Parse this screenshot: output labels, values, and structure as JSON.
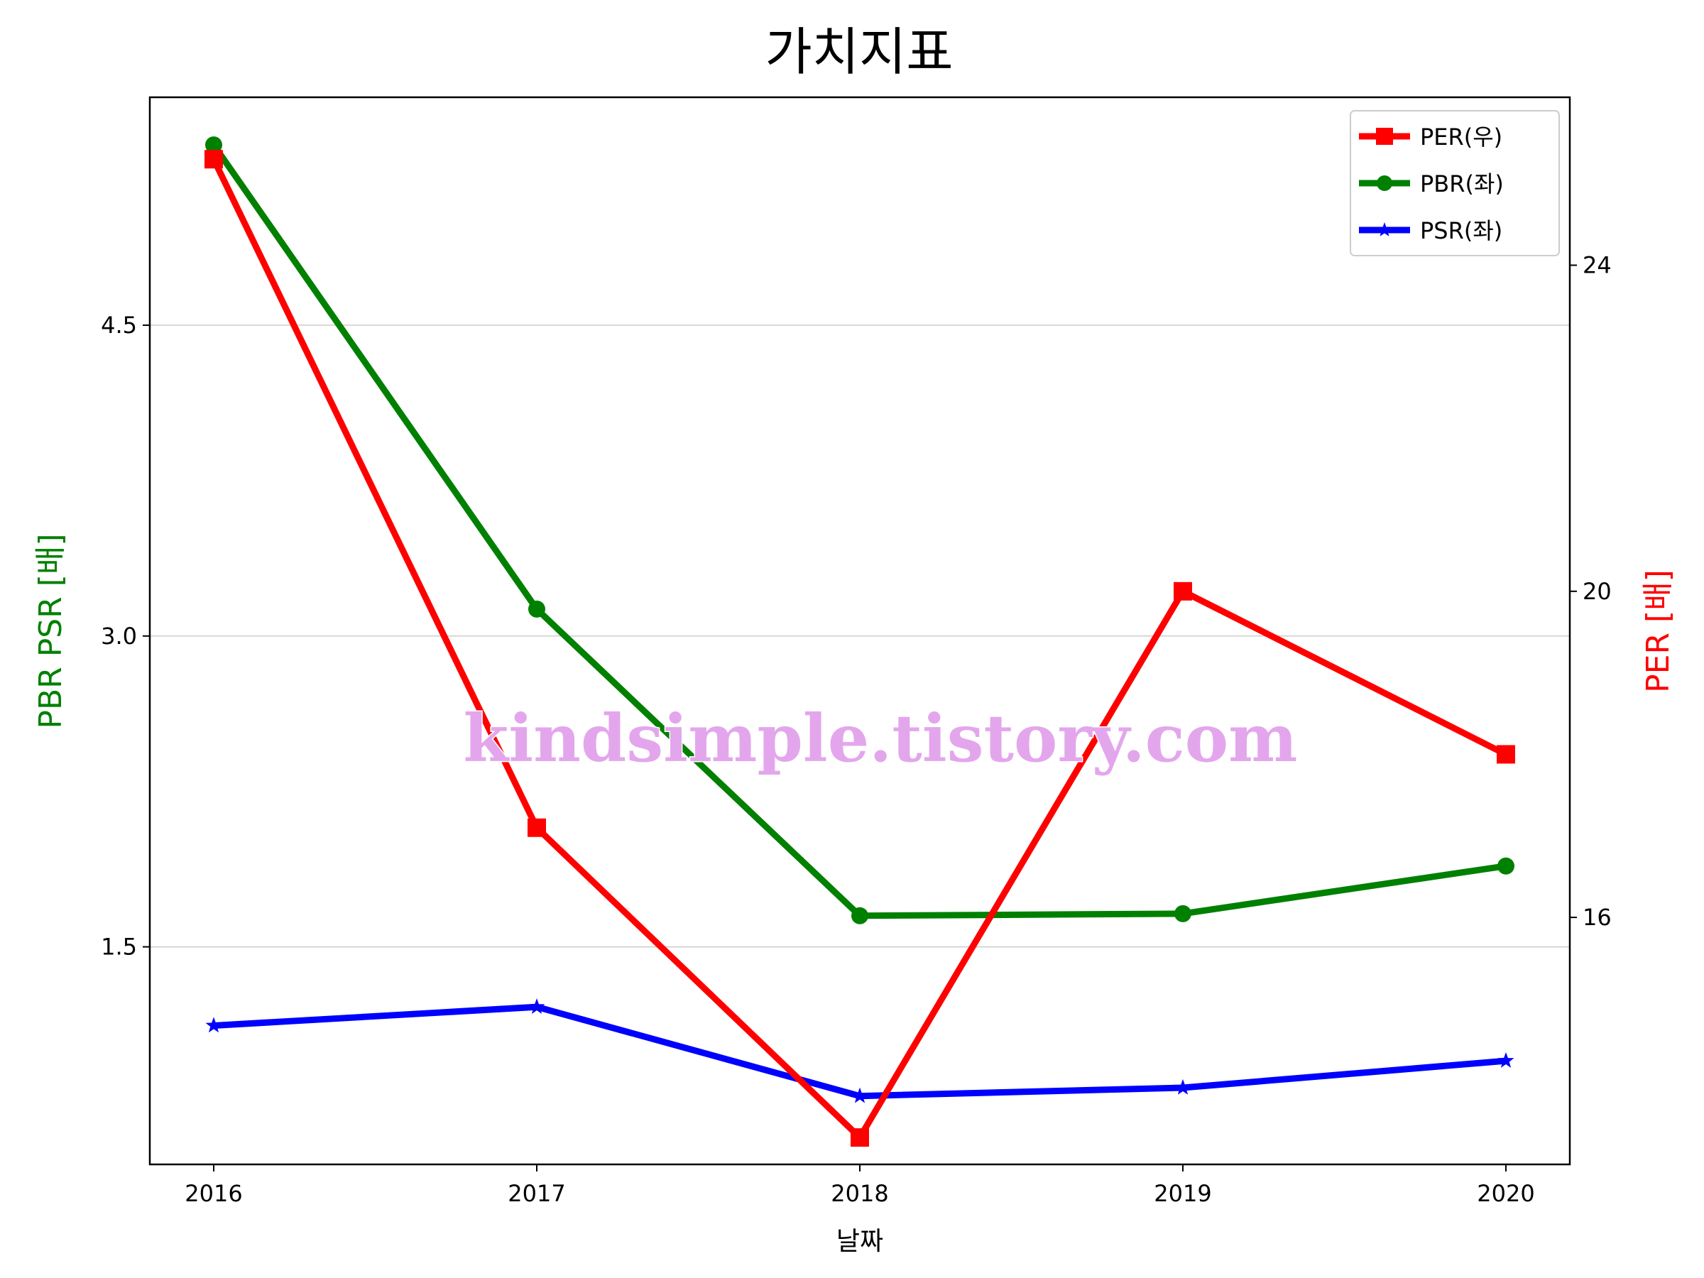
{
  "chart_data": {
    "type": "line",
    "title": "가치지표",
    "xlabel": "날짜",
    "ylabel_left": "PBR PSR [배]",
    "ylabel_right": "PER [배]",
    "categories": [
      "2016",
      "2017",
      "2018",
      "2019",
      "2020"
    ],
    "left_axis": {
      "ylim": [
        0.45,
        5.6
      ],
      "ticks": [
        1.5,
        3.0,
        4.5
      ],
      "tick_labels": [
        "1.5",
        "3.0",
        "4.5"
      ]
    },
    "right_axis": {
      "ylim": [
        12.97,
        26.06
      ],
      "ticks": [
        16,
        20,
        24
      ],
      "tick_labels": [
        "16",
        "20",
        "24"
      ]
    },
    "series": [
      {
        "name": "PER(우)",
        "axis": "right",
        "color": "#ff0000",
        "marker": "square",
        "values": [
          25.3,
          17.1,
          13.3,
          20.0,
          18.0
        ]
      },
      {
        "name": "PBR(좌)",
        "axis": "left",
        "color": "#008000",
        "marker": "circle",
        "values": [
          5.37,
          3.13,
          1.65,
          1.66,
          1.89
        ]
      },
      {
        "name": "PSR(좌)",
        "axis": "left",
        "color": "#0000ff",
        "marker": "star",
        "values": [
          1.12,
          1.21,
          0.78,
          0.82,
          0.95
        ]
      }
    ],
    "grid": "horizontal",
    "legend_position": "top-right",
    "watermark": "kindsimple.tistory.com"
  }
}
